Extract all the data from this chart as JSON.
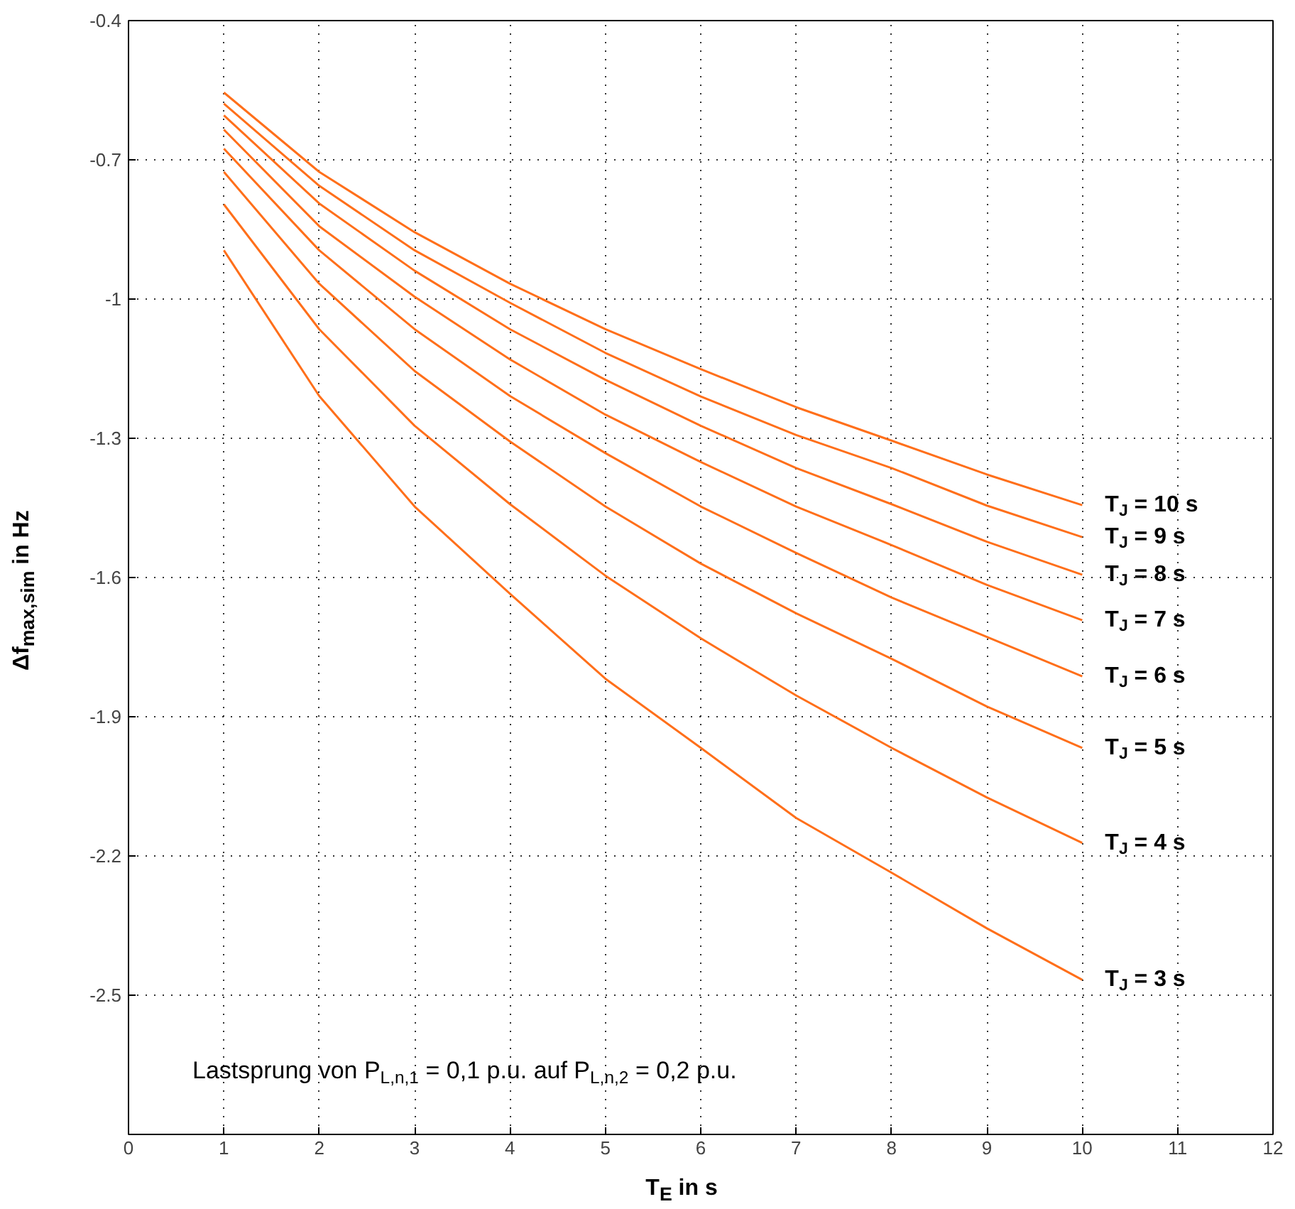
{
  "chart_data": {
    "type": "line",
    "xlabel": "T$_{E}$ in s",
    "ylabel": "Δf$_{max,sim}$ in Hz",
    "annotations": [
      "Lastsprung von P$_{L,n,1}$ = 0,1 p.u. auf P$_{L,n,2}$ = 0,2 p.u."
    ],
    "x": [
      1,
      2,
      3,
      4,
      5,
      6,
      7,
      8,
      9,
      10
    ],
    "series": [
      {
        "name": "T$_{J}$ = 10 s",
        "color": "#ff6f1a",
        "values": [
          -0.555,
          -0.726,
          -0.856,
          -0.967,
          -1.065,
          -1.151,
          -1.233,
          -1.305,
          -1.378,
          -1.444
        ]
      },
      {
        "name": "T$_{J}$ = 9 s",
        "color": "#ff6f1a",
        "values": [
          -0.579,
          -0.756,
          -0.895,
          -1.008,
          -1.116,
          -1.21,
          -1.293,
          -1.364,
          -1.445,
          -1.513
        ]
      },
      {
        "name": "T$_{J}$ = 8 s",
        "color": "#ff6f1a",
        "values": [
          -0.604,
          -0.794,
          -0.939,
          -1.065,
          -1.174,
          -1.273,
          -1.364,
          -1.442,
          -1.523,
          -1.594
        ]
      },
      {
        "name": "T$_{J}$ = 7 s",
        "color": "#ff6f1a",
        "values": [
          -0.635,
          -0.843,
          -0.995,
          -1.13,
          -1.249,
          -1.351,
          -1.447,
          -1.53,
          -1.616,
          -1.692
        ]
      },
      {
        "name": "T$_{J}$ = 6 s",
        "color": "#ff6f1a",
        "values": [
          -0.676,
          -0.895,
          -1.065,
          -1.209,
          -1.332,
          -1.447,
          -1.547,
          -1.643,
          -1.728,
          -1.813
        ]
      },
      {
        "name": "T$_{J}$ = 5 s",
        "color": "#ff6f1a",
        "values": [
          -0.726,
          -0.967,
          -1.155,
          -1.307,
          -1.447,
          -1.57,
          -1.677,
          -1.775,
          -1.878,
          -1.967
        ]
      },
      {
        "name": "T$_{J}$ = 4 s",
        "color": "#ff6f1a",
        "values": [
          -0.796,
          -1.065,
          -1.273,
          -1.442,
          -1.596,
          -1.731,
          -1.854,
          -1.967,
          -2.074,
          -2.172
        ]
      },
      {
        "name": "T$_{J}$ = 3 s",
        "color": "#ff6f1a",
        "values": [
          -0.895,
          -1.209,
          -1.447,
          -1.635,
          -1.818,
          -1.967,
          -2.118,
          -2.236,
          -2.356,
          -2.467
        ]
      }
    ],
    "xlim": [
      0,
      12
    ],
    "xticks": [
      0,
      1,
      2,
      3,
      4,
      5,
      6,
      7,
      8,
      9,
      10,
      11,
      12
    ],
    "ylim": [
      -2.8,
      -0.4
    ],
    "yticks": [
      -2.5,
      -2.2,
      -1.9,
      -1.6,
      -1.3,
      -1,
      -0.7,
      -0.4
    ],
    "grid": true,
    "marker": "none",
    "line_style": "solid"
  }
}
